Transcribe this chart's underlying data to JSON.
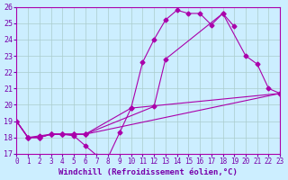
{
  "bg_color": "#cceeff",
  "line_color": "#aa00aa",
  "grid_color": "#aacccc",
  "xlabel": "Windchill (Refroidissement éolien,°C)",
  "xlabel_color": "#7700aa",
  "tick_color": "#7700aa",
  "xlim": [
    0,
    23
  ],
  "ylim": [
    17,
    26
  ],
  "yticks": [
    17,
    18,
    19,
    20,
    21,
    22,
    23,
    24,
    25,
    26
  ],
  "xticks": [
    0,
    1,
    2,
    3,
    4,
    5,
    6,
    7,
    8,
    9,
    10,
    11,
    12,
    13,
    14,
    15,
    16,
    17,
    18,
    19,
    20,
    21,
    22,
    23
  ],
  "curves": [
    {
      "x": [
        0,
        1,
        2,
        3,
        4,
        5,
        6,
        7,
        8,
        9,
        10,
        11,
        12,
        13,
        14,
        15,
        16,
        17,
        18,
        19,
        20,
        21,
        22,
        23
      ],
      "y": [
        19,
        18,
        18.1,
        18.2,
        18.2,
        18.1,
        17.5,
        16.9,
        16.8,
        18.3,
        19.8,
        22.6,
        24.0,
        25.2,
        25.8,
        25.6,
        25.6,
        24.9,
        25.6,
        24.8,
        null,
        null,
        null,
        null
      ]
    },
    {
      "x": [
        0,
        1,
        2,
        3,
        4,
        5,
        6,
        7,
        8,
        9,
        10,
        11,
        12,
        13,
        14,
        15,
        16,
        17,
        18,
        19,
        20,
        21,
        22,
        23
      ],
      "y": [
        19,
        18,
        18.0,
        18.2,
        18.2,
        18.2,
        18.2,
        null,
        null,
        null,
        null,
        null,
        19.9,
        22.8,
        null,
        null,
        null,
        null,
        25.6,
        null,
        23.0,
        22.5,
        21.0,
        20.7
      ]
    },
    {
      "x": [
        0,
        1,
        2,
        3,
        4,
        5,
        6,
        7,
        8,
        9,
        10,
        11,
        12,
        13,
        14,
        15,
        16,
        17,
        18,
        19,
        20,
        21,
        22,
        23
      ],
      "y": [
        19,
        18,
        18.0,
        18.2,
        18.2,
        18.2,
        18.2,
        null,
        null,
        null,
        null,
        null,
        null,
        null,
        null,
        null,
        null,
        null,
        null,
        null,
        null,
        null,
        null,
        20.7
      ]
    },
    {
      "x": [
        0,
        1,
        2,
        3,
        4,
        5,
        6,
        7,
        8,
        9,
        10,
        11,
        12,
        13,
        14,
        15,
        16,
        17,
        18,
        19,
        20,
        21,
        22,
        23
      ],
      "y": [
        19,
        18,
        18.0,
        18.2,
        18.2,
        18.2,
        18.2,
        null,
        null,
        null,
        19.8,
        null,
        null,
        null,
        null,
        null,
        null,
        null,
        null,
        null,
        null,
        null,
        null,
        20.7
      ]
    }
  ],
  "series": [
    {
      "x": [
        0,
        1,
        2,
        3,
        4,
        5,
        6,
        7,
        8,
        9,
        10,
        11,
        12,
        13,
        14,
        15,
        16,
        17,
        18,
        19
      ],
      "y": [
        19.0,
        18.0,
        18.1,
        18.2,
        18.2,
        18.1,
        17.5,
        16.9,
        16.8,
        18.3,
        19.8,
        22.6,
        24.0,
        25.2,
        25.8,
        25.6,
        25.6,
        24.9,
        25.6,
        24.8
      ]
    },
    {
      "x": [
        0,
        1,
        2,
        3,
        4,
        5,
        6,
        12,
        13,
        18,
        20,
        21,
        22,
        23
      ],
      "y": [
        19.0,
        18.0,
        18.0,
        18.2,
        18.2,
        18.2,
        18.2,
        19.9,
        22.8,
        25.6,
        23.0,
        22.5,
        21.0,
        20.7
      ]
    },
    {
      "x": [
        0,
        1,
        2,
        3,
        4,
        5,
        6,
        23
      ],
      "y": [
        19.0,
        18.0,
        18.0,
        18.2,
        18.2,
        18.2,
        18.2,
        20.7
      ]
    },
    {
      "x": [
        0,
        1,
        2,
        3,
        4,
        5,
        6,
        10,
        23
      ],
      "y": [
        19.0,
        18.0,
        18.0,
        18.2,
        18.2,
        18.2,
        18.2,
        19.8,
        20.7
      ]
    }
  ]
}
